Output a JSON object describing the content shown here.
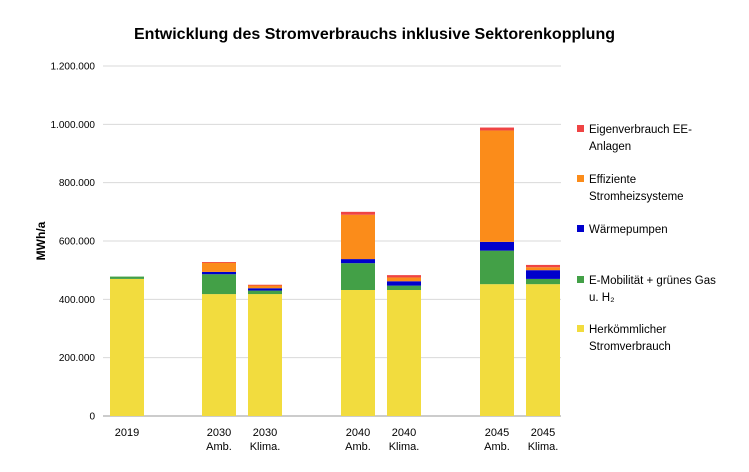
{
  "chart_data": {
    "type": "bar",
    "stacked": true,
    "title": "Entwicklung des Stromverbrauchs inklusive Sektorenkopplung",
    "ylabel": "MWh/a",
    "xlabel": "",
    "ylim": [
      0,
      1200000
    ],
    "yticks": [
      "0",
      "200.000",
      "400.000",
      "600.000",
      "800.000",
      "1.000.000",
      "1.200.000"
    ],
    "grid": true,
    "legend_position": "right",
    "categories": [
      [
        "2019"
      ],
      [
        "2030",
        "Amb."
      ],
      [
        "2030",
        "Klima."
      ],
      [
        "2040",
        "Amb."
      ],
      [
        "2040",
        "Klima."
      ],
      [
        "2045",
        "Amb."
      ],
      [
        "2045",
        "Klima."
      ]
    ],
    "series": [
      {
        "name": "Herkömmlicher Stromverbrauch",
        "legend_lines": [
          "Herkömmlicher",
          "Stromverbrauch"
        ],
        "color": "#F2DC3E",
        "values": [
          470000,
          418000,
          418000,
          432000,
          432000,
          452000,
          452000
        ]
      },
      {
        "name": "E-Mobilität + grünes Gas u. H₂",
        "legend_lines": [
          "E-Mobilität + grünes Gas",
          "u. H₂"
        ],
        "color": "#43A047",
        "values": [
          8000,
          68000,
          12000,
          92000,
          15000,
          115000,
          18000
        ]
      },
      {
        "name": "Wärmepumpen",
        "legend_lines": [
          "Wärmepumpen"
        ],
        "color": "#0000CC",
        "values": [
          0,
          8000,
          8000,
          14000,
          15000,
          30000,
          30000
        ]
      },
      {
        "name": "Effiziente Stromheizsysteme",
        "legend_lines": [
          "Effiziente",
          "Stromheizsysteme"
        ],
        "color": "#FB8C1A",
        "values": [
          0,
          32000,
          10000,
          152000,
          13000,
          382000,
          10000
        ]
      },
      {
        "name": "Eigenverbrauch EE-Anlagen",
        "legend_lines": [
          "Eigenverbrauch EE-",
          "Anlagen"
        ],
        "color": "#EF4444",
        "values": [
          0,
          2000,
          2000,
          10000,
          8000,
          10000,
          8000
        ]
      }
    ]
  }
}
